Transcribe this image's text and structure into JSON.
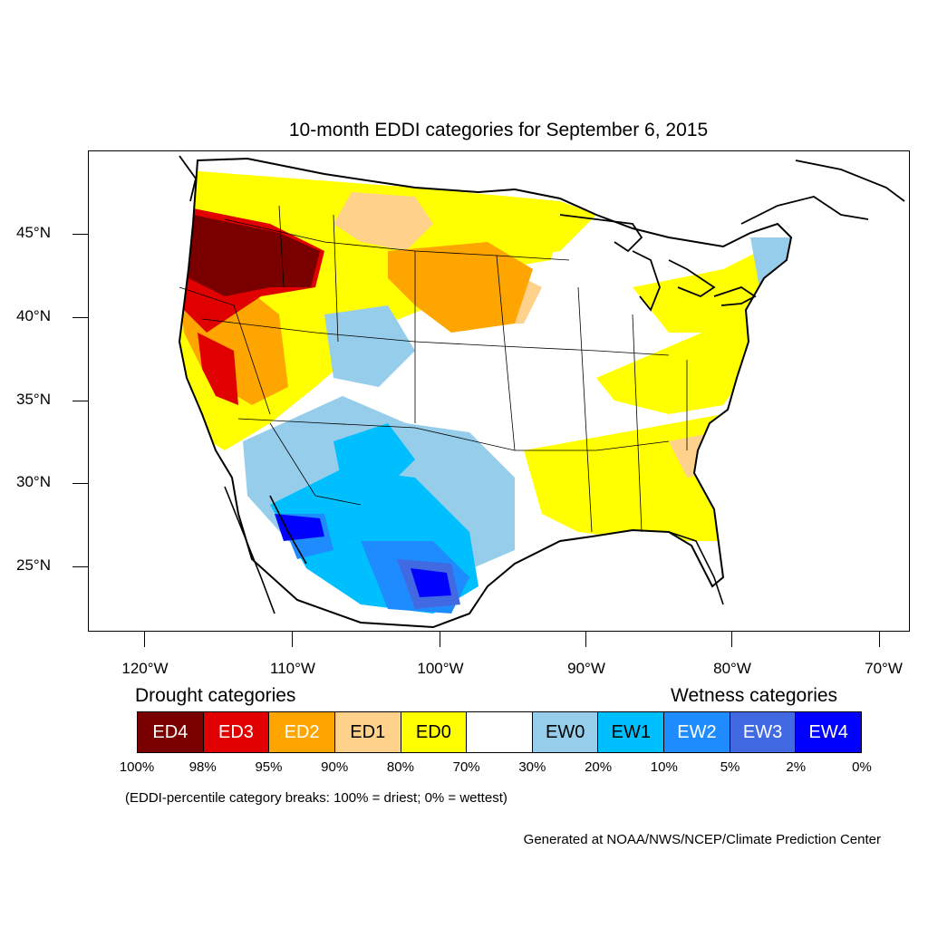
{
  "title": "10-month EDDI categories for September 6, 2015",
  "lat_labels": [
    "45°N",
    "40°N",
    "35°N",
    "30°N",
    "25°N"
  ],
  "lon_labels": [
    "120°W",
    "110°W",
    "100°W",
    "90°W",
    "80°W",
    "70°W"
  ],
  "legend": {
    "drought_heading": "Drought categories",
    "wetness_heading": "Wetness categories",
    "categories": [
      {
        "label": "ED4",
        "color": "#7a0000",
        "text_color": "#ffffff"
      },
      {
        "label": "ED3",
        "color": "#e00000",
        "text_color": "#ffffff"
      },
      {
        "label": "ED2",
        "color": "#ffa500",
        "text_color": "#ffffff"
      },
      {
        "label": "ED1",
        "color": "#ffd28c",
        "text_color": "#000000"
      },
      {
        "label": "ED0",
        "color": "#ffff00",
        "text_color": "#000000"
      },
      {
        "label": "",
        "color": "#ffffff",
        "text_color": "#000000"
      },
      {
        "label": "EW0",
        "color": "#96cdeb",
        "text_color": "#000000"
      },
      {
        "label": "EW1",
        "color": "#00bfff",
        "text_color": "#000000"
      },
      {
        "label": "EW2",
        "color": "#1e8cff",
        "text_color": "#ffffff"
      },
      {
        "label": "EW3",
        "color": "#4169e1",
        "text_color": "#ffffff"
      },
      {
        "label": "EW4",
        "color": "#0000ff",
        "text_color": "#ffffff"
      }
    ],
    "percent_breaks": [
      "100%",
      "98%",
      "95%",
      "90%",
      "80%",
      "70%",
      "30%",
      "20%",
      "10%",
      "5%",
      "2%",
      "0%"
    ]
  },
  "note": "(EDDI-percentile category breaks: 100% = driest; 0% = wettest)",
  "credit": "Generated at NOAA/NWS/NCEP/Climate Prediction Center"
}
